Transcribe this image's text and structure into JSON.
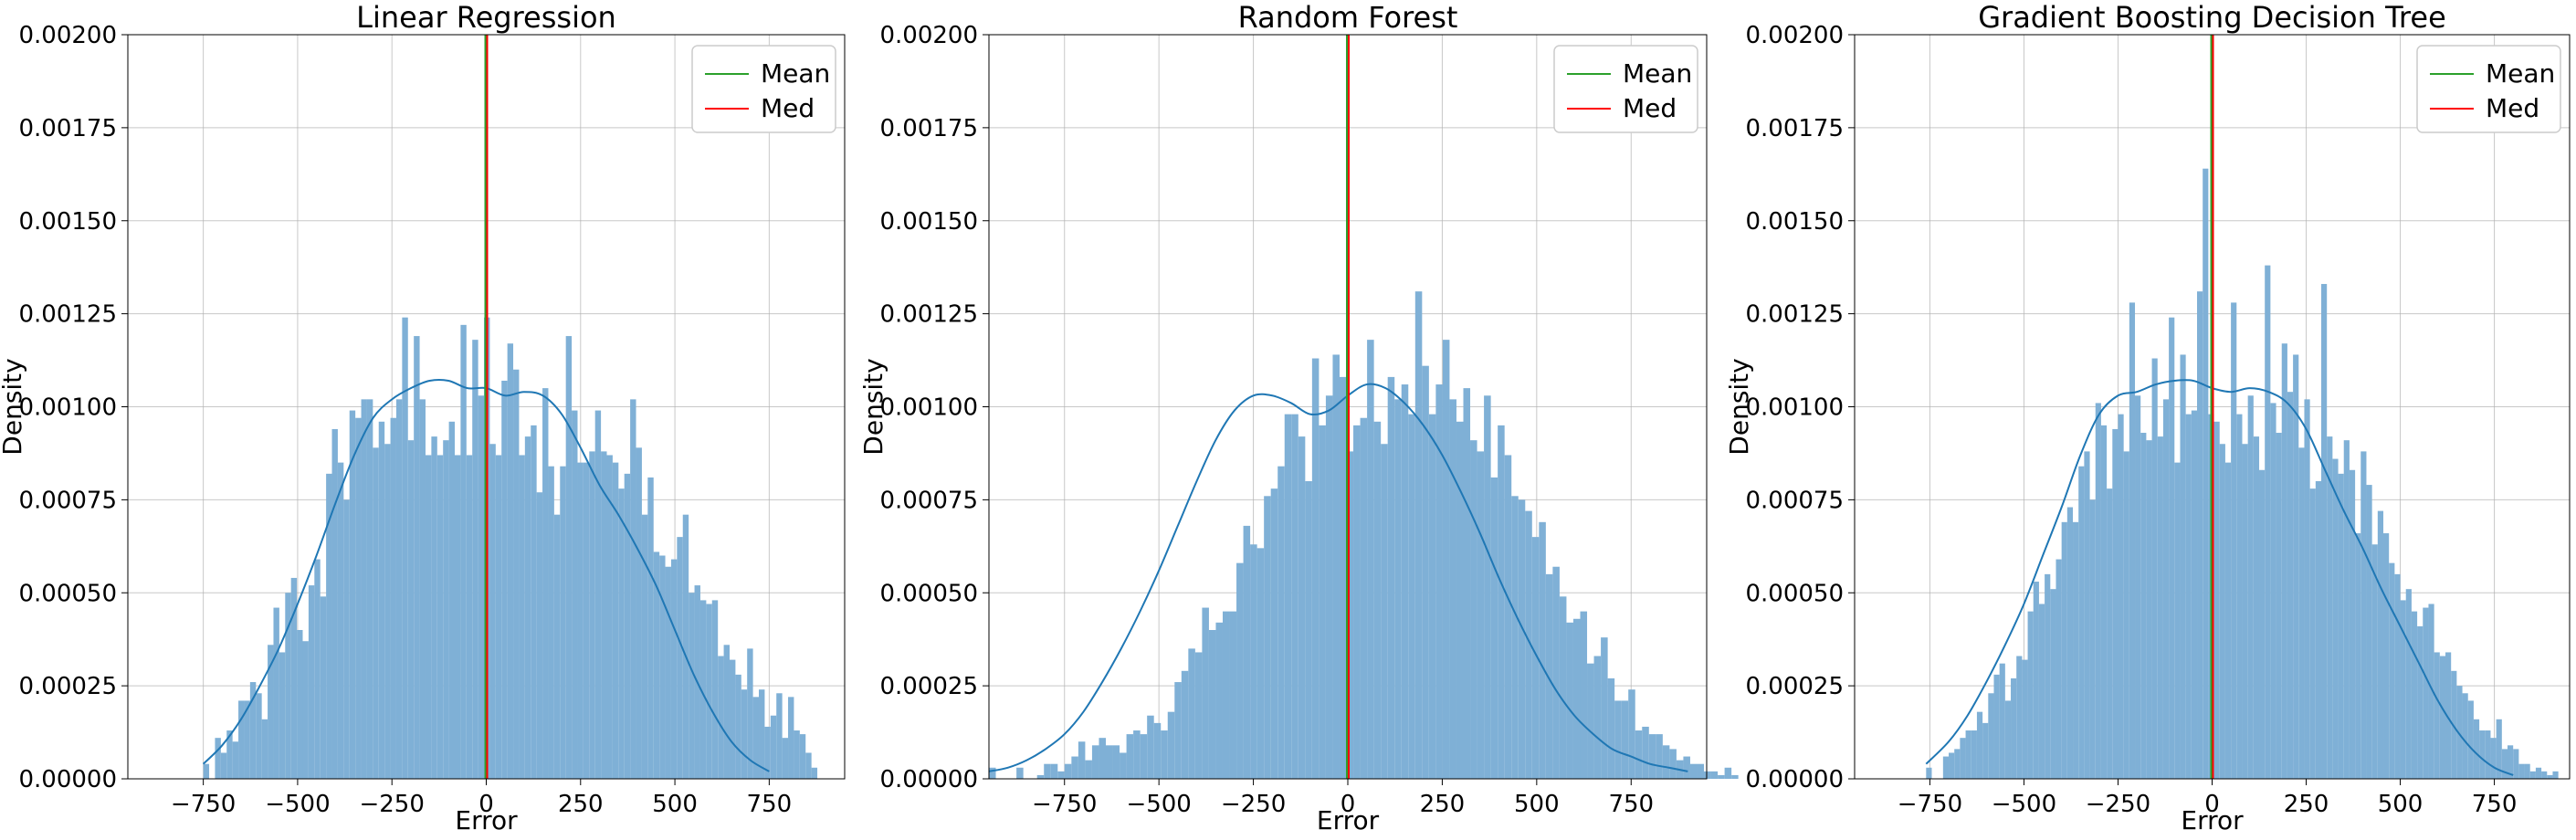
{
  "legend_colors": {
    "mean": "#2ca02c",
    "median": "#ff0000"
  },
  "bar_color": "#7fb0d6",
  "kde_color": "#1f77b4",
  "chart_data": [
    {
      "type": "bar",
      "subtype": "histogram-with-kde",
      "title": "Linear Regression",
      "xlabel": "Error",
      "ylabel": "Density",
      "xlim": [
        -950,
        950
      ],
      "ylim": [
        0,
        0.002
      ],
      "xticks": [
        -750,
        -500,
        -250,
        0,
        250,
        500,
        750
      ],
      "xtick_labels": [
        "−750",
        "−500",
        "−250",
        "0",
        "250",
        "500",
        "750"
      ],
      "yticks": [
        0,
        0.00025,
        0.0005,
        0.00075,
        0.001,
        0.00125,
        0.0015,
        0.00175,
        0.002
      ],
      "ytick_labels": [
        "0.00000",
        "0.00025",
        "0.00050",
        "0.00075",
        "0.00100",
        "0.00125",
        "0.00150",
        "0.00175",
        "0.00200"
      ],
      "grid": true,
      "legend": [
        "Mean",
        "Med"
      ],
      "legend_position": "top-right",
      "mean": 0,
      "median": 0,
      "bins": {
        "start": -750,
        "width": 15.5
      },
      "values": [
        4e-05,
        0.0,
        0.00011,
        7e-05,
        0.00013,
        0.0001,
        0.00021,
        0.00021,
        0.00026,
        0.00023,
        0.00016,
        0.00036,
        0.00046,
        0.00034,
        0.0005,
        0.00054,
        0.0004,
        0.00037,
        0.00052,
        0.00059,
        0.00049,
        0.00082,
        0.00094,
        0.00085,
        0.00075,
        0.00099,
        0.00097,
        0.00102,
        0.00102,
        0.00089,
        0.00096,
        0.0009,
        0.00097,
        0.00102,
        0.00124,
        0.00091,
        0.00119,
        0.00102,
        0.00087,
        0.00092,
        0.00087,
        0.00091,
        0.00096,
        0.00087,
        0.00122,
        0.00087,
        0.00118,
        0.00103,
        0.00124,
        0.0009,
        0.00087,
        0.00107,
        0.00117,
        0.0011,
        0.00087,
        0.00092,
        0.00095,
        0.00077,
        0.00105,
        0.00084,
        0.00071,
        0.00084,
        0.00119,
        0.00099,
        0.00085,
        0.00085,
        0.00088,
        0.00099,
        0.00088,
        0.00087,
        0.00085,
        0.00078,
        0.00082,
        0.00102,
        0.00089,
        0.00071,
        0.00081,
        0.00061,
        0.0006,
        0.00057,
        0.00059,
        0.00065,
        0.00071,
        0.0005,
        0.00052,
        0.00048,
        0.00047,
        0.00048,
        0.00033,
        0.00036,
        0.00032,
        0.00028,
        0.00024,
        0.00035,
        0.00022,
        0.00024,
        0.00014,
        0.00017,
        0.00023,
        0.00011,
        0.00022,
        0.00013,
        0.00012,
        7e-05,
        3e-05
      ],
      "kde": {
        "x": [
          -750,
          -700,
          -650,
          -600,
          -550,
          -500,
          -450,
          -400,
          -350,
          -300,
          -250,
          -200,
          -150,
          -100,
          -50,
          0,
          50,
          100,
          150,
          200,
          250,
          300,
          350,
          400,
          450,
          500,
          550,
          600,
          650,
          700,
          750
        ],
        "y": [
          4e-05,
          9e-05,
          0.00016,
          0.00025,
          0.00035,
          0.00047,
          0.0006,
          0.00074,
          0.00087,
          0.00097,
          0.00102,
          0.00105,
          0.00107,
          0.00107,
          0.00105,
          0.00105,
          0.00103,
          0.00104,
          0.00103,
          0.00098,
          0.00089,
          0.00079,
          0.00071,
          0.00062,
          0.00052,
          0.0004,
          0.00028,
          0.00018,
          0.0001,
          5e-05,
          2e-05
        ]
      }
    },
    {
      "type": "bar",
      "subtype": "histogram-with-kde",
      "title": "Random Forest",
      "xlabel": "Error",
      "ylabel": "Density",
      "xlim": [
        -950,
        950
      ],
      "ylim": [
        0,
        0.002
      ],
      "xticks": [
        -750,
        -500,
        -250,
        0,
        250,
        500,
        750
      ],
      "xtick_labels": [
        "−750",
        "−500",
        "−250",
        "0",
        "250",
        "500",
        "750"
      ],
      "yticks": [
        0,
        0.00025,
        0.0005,
        0.00075,
        0.001,
        0.00125,
        0.0015,
        0.00175,
        0.002
      ],
      "ytick_labels": [
        "0.00000",
        "0.00025",
        "0.00050",
        "0.00075",
        "0.00100",
        "0.00125",
        "0.00150",
        "0.00175",
        "0.00200"
      ],
      "grid": true,
      "legend": [
        "Mean",
        "Med"
      ],
      "legend_position": "top-right",
      "mean": 0,
      "median": 0,
      "bins": {
        "start": -950,
        "width": 18.2
      },
      "values": [
        3e-05,
        0.0,
        0.0,
        0.0,
        3e-05,
        0.0,
        0.0,
        1e-05,
        4e-05,
        4e-05,
        2e-05,
        4e-05,
        6e-05,
        0.0001,
        5e-05,
        9e-05,
        0.00011,
        9e-05,
        9e-05,
        7e-05,
        0.00012,
        0.00013,
        0.00012,
        0.00017,
        0.00015,
        0.00013,
        0.00018,
        0.00026,
        0.00029,
        0.00035,
        0.00034,
        0.00046,
        0.0004,
        0.00042,
        0.00045,
        0.00045,
        0.00058,
        0.00068,
        0.00063,
        0.00062,
        0.00076,
        0.00078,
        0.00084,
        0.00098,
        0.00098,
        0.00092,
        0.0008,
        0.00113,
        0.00095,
        0.00103,
        0.00114,
        0.00108,
        0.00088,
        0.00095,
        0.00097,
        0.00118,
        0.00096,
        0.0009,
        0.00108,
        0.00102,
        0.00106,
        0.00098,
        0.00131,
        0.00111,
        0.00098,
        0.00106,
        0.00118,
        0.00102,
        0.00096,
        0.00105,
        0.00091,
        0.00088,
        0.00103,
        0.00081,
        0.00095,
        0.00087,
        0.00076,
        0.00075,
        0.00072,
        0.00065,
        0.00069,
        0.00055,
        0.00057,
        0.00049,
        0.00042,
        0.00043,
        0.00045,
        0.00031,
        0.00033,
        0.00038,
        0.00027,
        0.00021,
        0.00021,
        0.00024,
        0.00013,
        0.00014,
        0.00012,
        0.00012,
        9e-05,
        8e-05,
        5e-05,
        6e-05,
        4e-05,
        4e-05,
        2e-05,
        2e-05,
        1e-05,
        3e-05,
        1e-05,
        0.0
      ],
      "kde": {
        "x": [
          -950,
          -900,
          -850,
          -800,
          -750,
          -700,
          -650,
          -600,
          -550,
          -500,
          -450,
          -400,
          -350,
          -300,
          -250,
          -200,
          -150,
          -100,
          -50,
          0,
          50,
          100,
          150,
          200,
          250,
          300,
          350,
          400,
          450,
          500,
          550,
          600,
          650,
          700,
          750,
          800,
          850,
          900
        ],
        "y": [
          2e-05,
          3e-05,
          5e-05,
          8e-05,
          0.00012,
          0.00018,
          0.00026,
          0.00035,
          0.00045,
          0.00056,
          0.00068,
          0.0008,
          0.00091,
          0.00099,
          0.00103,
          0.00103,
          0.00101,
          0.00098,
          0.00099,
          0.00103,
          0.00106,
          0.00105,
          0.00101,
          0.00095,
          0.00087,
          0.00077,
          0.00066,
          0.00054,
          0.00043,
          0.00033,
          0.00024,
          0.00017,
          0.00012,
          8e-05,
          6e-05,
          4e-05,
          3e-05,
          2e-05
        ]
      }
    },
    {
      "type": "bar",
      "subtype": "histogram-with-kde",
      "title": "Gradient Boosting Decision Tree",
      "xlabel": "Error",
      "ylabel": "Density",
      "xlim": [
        -950,
        950
      ],
      "ylim": [
        0,
        0.002
      ],
      "xticks": [
        -750,
        -500,
        -250,
        0,
        250,
        500,
        750
      ],
      "xtick_labels": [
        "−750",
        "−500",
        "−250",
        "0",
        "250",
        "500",
        "750"
      ],
      "yticks": [
        0,
        0.00025,
        0.0005,
        0.00075,
        0.001,
        0.00125,
        0.0015,
        0.00175,
        0.002
      ],
      "ytick_labels": [
        "0.00000",
        "0.00025",
        "0.00050",
        "0.00075",
        "0.00100",
        "0.00125",
        "0.00150",
        "0.00175",
        "0.00200"
      ],
      "grid": true,
      "legend": [
        "Mean",
        "Med"
      ],
      "legend_position": "top-right",
      "mean": 0,
      "median": 0,
      "bins": {
        "start": -760,
        "width": 15.0
      },
      "values": [
        3e-05,
        0.0,
        0.0,
        6e-05,
        7e-05,
        8e-05,
        0.00011,
        0.00013,
        0.00013,
        0.00018,
        0.00015,
        0.00023,
        0.00028,
        0.00031,
        0.00021,
        0.00027,
        0.00033,
        0.00032,
        0.00045,
        0.00053,
        0.00047,
        0.00055,
        0.00051,
        0.00059,
        0.00069,
        0.00073,
        0.00069,
        0.00084,
        0.00088,
        0.00075,
        0.00101,
        0.00095,
        0.00078,
        0.00094,
        0.00098,
        0.00088,
        0.00128,
        0.00103,
        0.00093,
        0.00091,
        0.00113,
        0.00092,
        0.00102,
        0.00124,
        0.00085,
        0.00114,
        0.00098,
        0.00099,
        0.00131,
        0.00164,
        0.00098,
        0.00096,
        0.0009,
        0.00085,
        0.00128,
        0.00098,
        0.0009,
        0.00103,
        0.00092,
        0.00083,
        0.00138,
        0.00101,
        0.00093,
        0.00117,
        0.00104,
        0.00114,
        0.00089,
        0.00102,
        0.00078,
        0.0008,
        0.00133,
        0.00092,
        0.00086,
        0.00082,
        0.00091,
        0.00083,
        0.00066,
        0.00088,
        0.00079,
        0.00063,
        0.00072,
        0.00066,
        0.00058,
        0.00055,
        0.00048,
        0.00051,
        0.00045,
        0.00041,
        0.00046,
        0.00047,
        0.00034,
        0.00033,
        0.00034,
        0.00029,
        0.00025,
        0.00023,
        0.00021,
        0.00016,
        0.00013,
        0.00013,
        0.00011,
        0.00016,
        8e-05,
        9e-05,
        8e-05,
        4e-05,
        4e-05,
        2e-05,
        3e-05,
        2e-05,
        1e-05,
        2e-05
      ],
      "kde": {
        "x": [
          -760,
          -700,
          -650,
          -600,
          -550,
          -500,
          -450,
          -400,
          -350,
          -300,
          -250,
          -200,
          -150,
          -100,
          -50,
          0,
          50,
          100,
          150,
          200,
          250,
          300,
          350,
          400,
          450,
          500,
          550,
          600,
          650,
          700,
          750,
          800
        ],
        "y": [
          4e-05,
          0.0001,
          0.00017,
          0.00026,
          0.00036,
          0.00047,
          0.0006,
          0.00073,
          0.00087,
          0.00098,
          0.00103,
          0.00104,
          0.00106,
          0.00107,
          0.00107,
          0.00105,
          0.00104,
          0.00105,
          0.00104,
          0.00101,
          0.00094,
          0.00083,
          0.00072,
          0.00062,
          0.00051,
          0.00041,
          0.00031,
          0.00021,
          0.00013,
          7e-05,
          3e-05,
          1e-05
        ]
      }
    }
  ]
}
